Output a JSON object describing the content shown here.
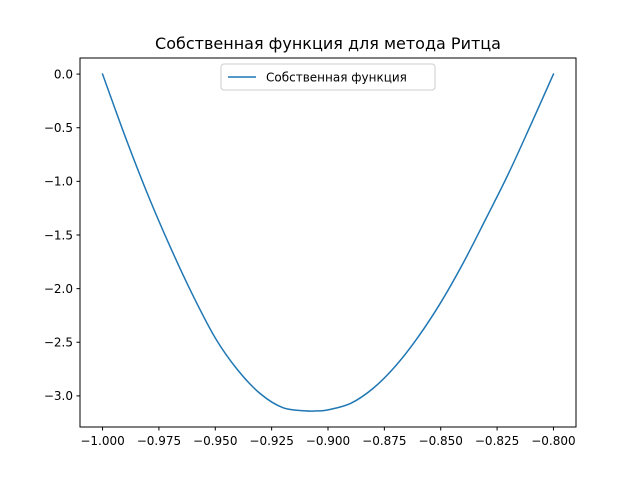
{
  "chart_data": {
    "type": "line",
    "title": "Собственная функция для метода Ритца",
    "xlabel": "",
    "ylabel": "",
    "xlim": [
      -1.01,
      -0.79
    ],
    "ylim": [
      -3.29,
      0.15
    ],
    "xticks": [
      -1.0,
      -0.975,
      -0.95,
      -0.925,
      -0.9,
      -0.875,
      -0.85,
      -0.825,
      -0.8
    ],
    "xtick_labels": [
      "−1.000",
      "−0.975",
      "−0.950",
      "−0.925",
      "−0.900",
      "−0.875",
      "−0.850",
      "−0.825",
      "−0.800"
    ],
    "yticks": [
      0.0,
      -0.5,
      -1.0,
      -1.5,
      -2.0,
      -2.5,
      -3.0
    ],
    "ytick_labels": [
      "0.0",
      "−0.5",
      "−1.0",
      "−1.5",
      "−2.0",
      "−2.5",
      "−3.0"
    ],
    "grid": false,
    "legend_position": "top-center",
    "series": [
      {
        "name": "Собственная функция",
        "color": "#1f77b4",
        "x": [
          -1.0,
          -0.99,
          -0.98,
          -0.97,
          -0.96,
          -0.95,
          -0.94,
          -0.93,
          -0.92,
          -0.91,
          -0.905,
          -0.9,
          -0.89,
          -0.88,
          -0.87,
          -0.86,
          -0.85,
          -0.84,
          -0.83,
          -0.82,
          -0.81,
          -0.8
        ],
        "y": [
          0.0,
          -0.58,
          -1.12,
          -1.61,
          -2.06,
          -2.46,
          -2.76,
          -2.98,
          -3.11,
          -3.14,
          -3.14,
          -3.13,
          -3.07,
          -2.93,
          -2.72,
          -2.45,
          -2.13,
          -1.76,
          -1.35,
          -0.93,
          -0.47,
          0.0
        ]
      }
    ]
  }
}
